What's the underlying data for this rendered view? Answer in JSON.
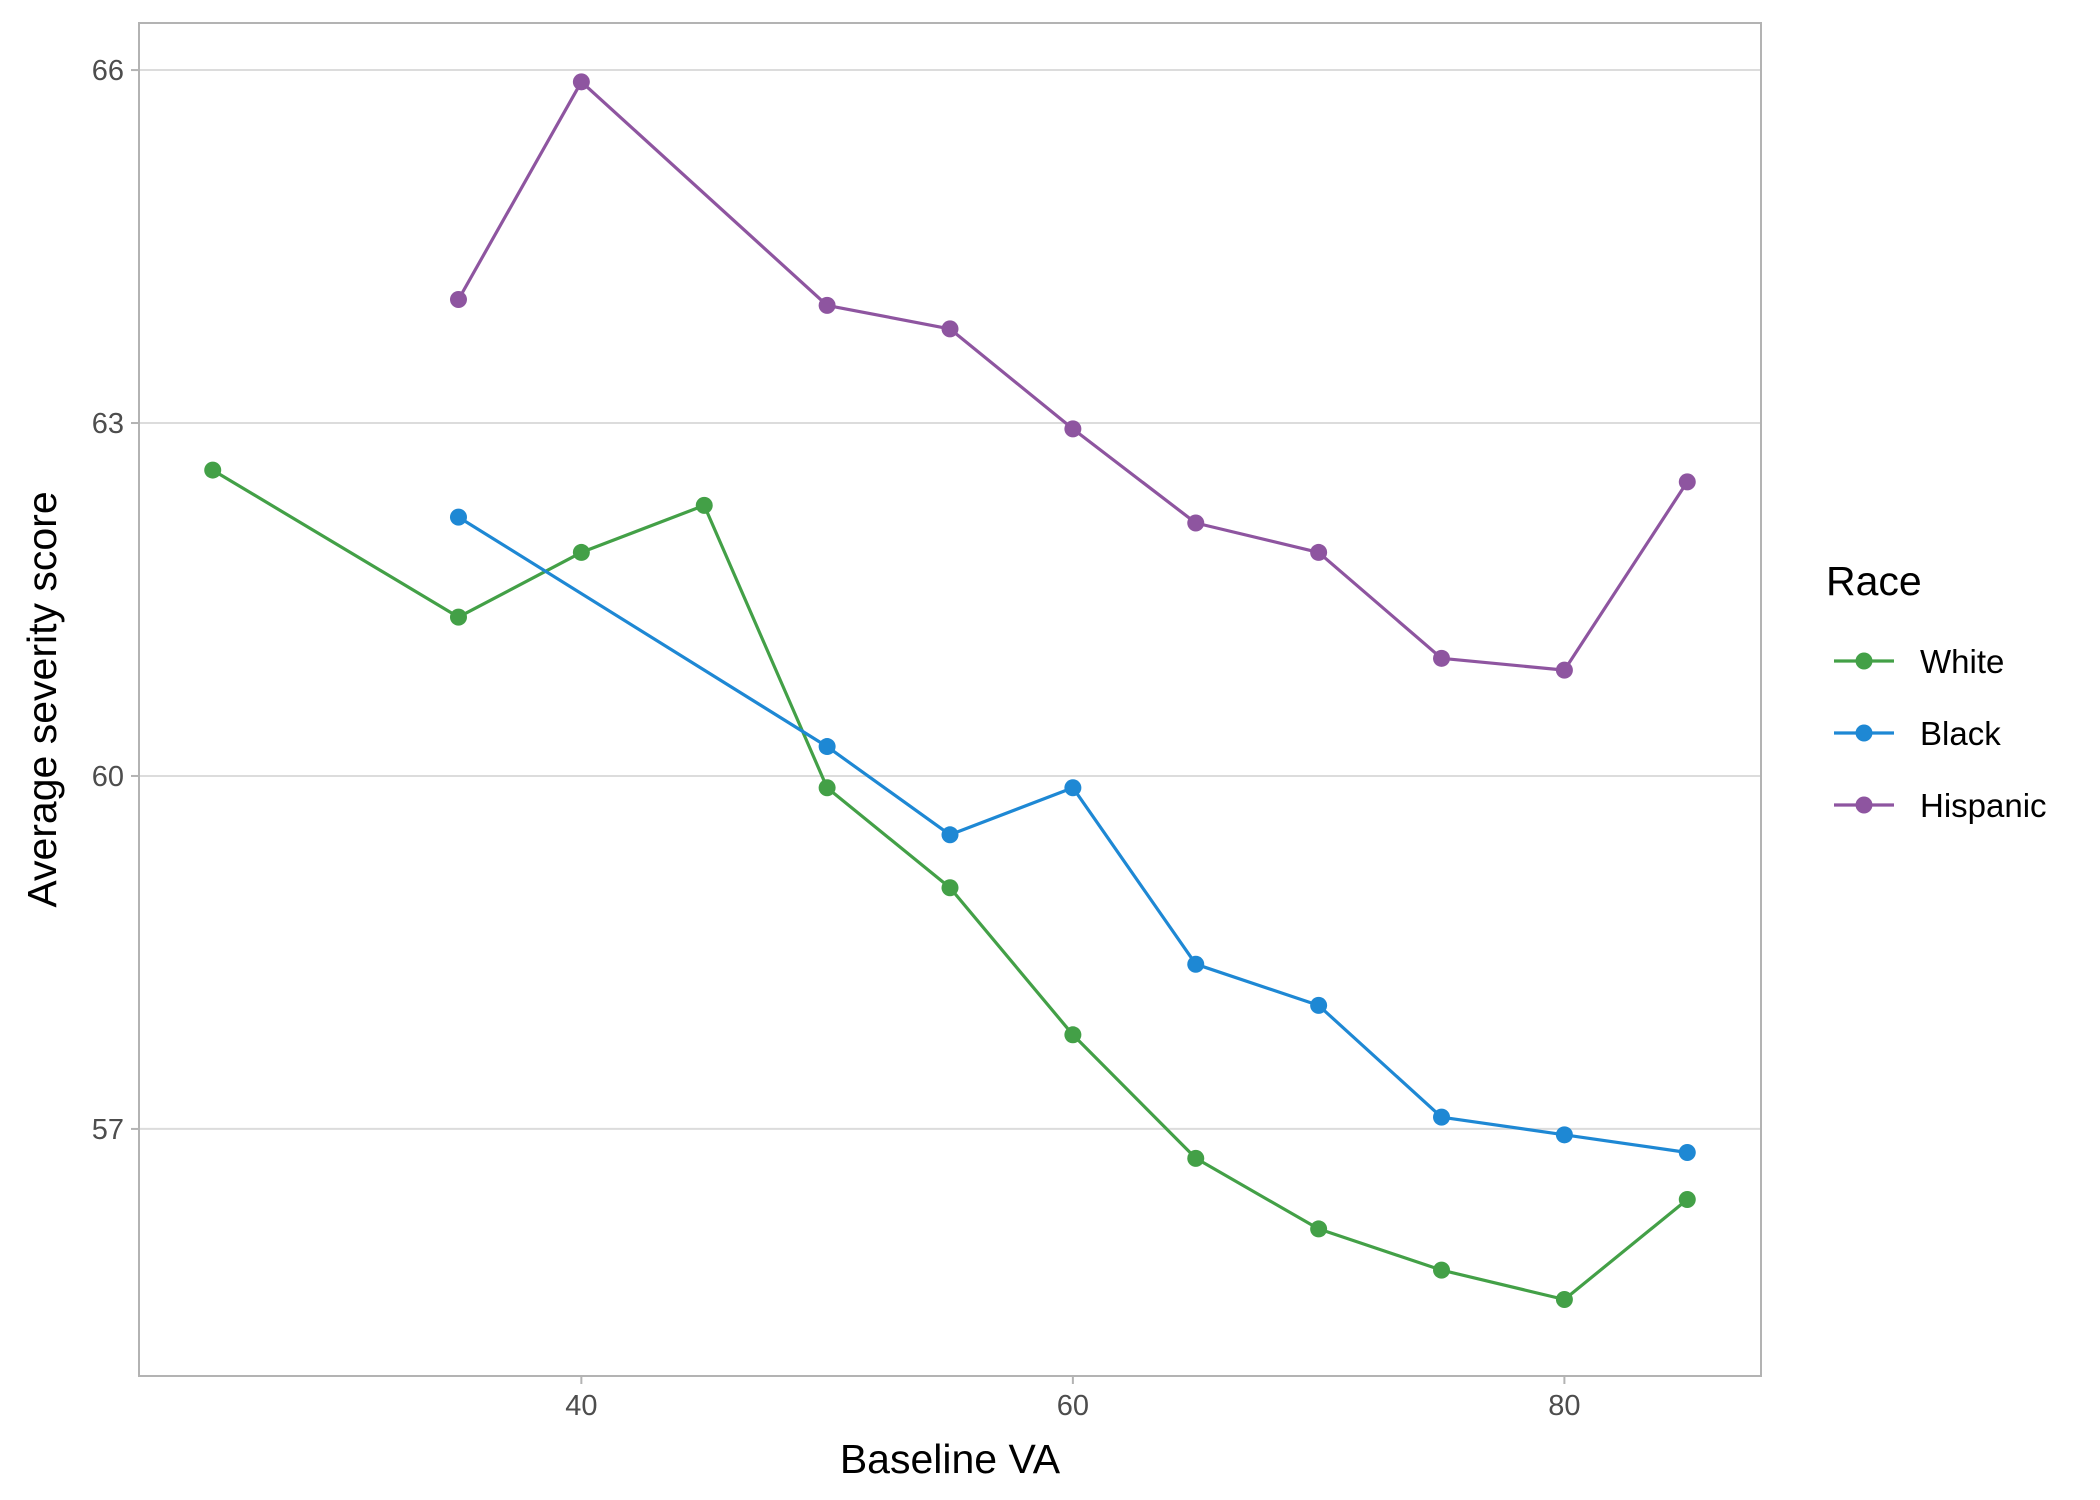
{
  "chart_data": {
    "type": "line",
    "xlabel": "Baseline VA",
    "ylabel": "Average severity score",
    "xlim": [
      22,
      88
    ],
    "ylim": [
      54.9,
      66.4
    ],
    "xticks": [
      40,
      60,
      80
    ],
    "yticks": [
      57,
      60,
      63,
      66
    ],
    "grid": {
      "major_y": true,
      "major_x": false
    },
    "legend": {
      "title": "Race",
      "position": "right"
    },
    "series": [
      {
        "name": "White",
        "color": "#43a047",
        "x": [
          25,
          35,
          40,
          45,
          50,
          55,
          60,
          65,
          70,
          75,
          80,
          85
        ],
        "y": [
          62.6,
          61.35,
          61.9,
          62.3,
          59.9,
          59.05,
          57.8,
          56.75,
          56.15,
          55.8,
          55.55,
          56.4
        ]
      },
      {
        "name": "Black",
        "color": "#1e88d4",
        "x": [
          35,
          50,
          55,
          60,
          65,
          70,
          75,
          80,
          85
        ],
        "y": [
          62.2,
          60.25,
          59.5,
          59.9,
          58.4,
          58.05,
          57.1,
          56.95,
          56.8
        ]
      },
      {
        "name": "Hispanic",
        "color": "#8e55a0",
        "x": [
          35,
          40,
          50,
          55,
          60,
          65,
          70,
          75,
          80,
          85
        ],
        "y": [
          64.05,
          65.9,
          64.0,
          63.8,
          62.95,
          62.15,
          61.9,
          61.0,
          60.9,
          62.5
        ]
      }
    ]
  }
}
